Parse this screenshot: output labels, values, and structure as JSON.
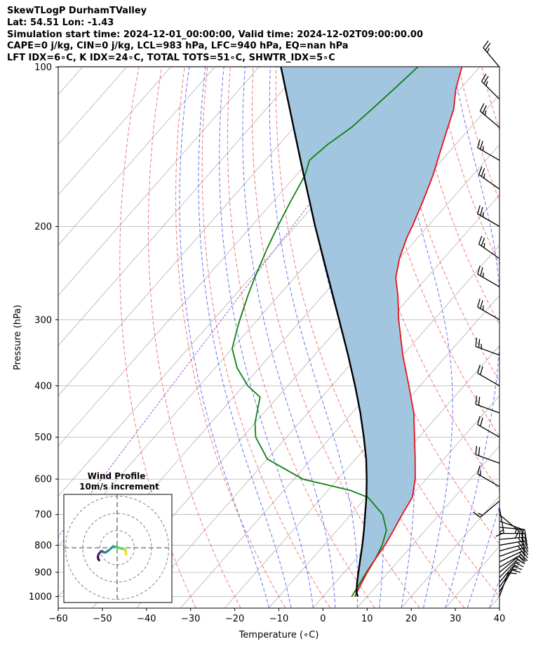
{
  "header": {
    "title_line": "SkewTLogP DurhamTValley",
    "location_line": "Lat: 54.51   Lon: -1.43",
    "time_line": "Simulation start time: 2024-12-01_00:00:00, Valid time: 2024-12-02T09:00:00.00",
    "params_line": "CAPE=0 j/kg, CIN=0 j/kg, LCL=983 hPa, LFC=940 hPa, EQ=nan hPa",
    "indices_line": "LFT IDX=6∘C, K IDX=24∘C, TOTAL TOTS=51∘C, SHWTR_IDX=5∘C"
  },
  "chart_data": {
    "type": "skewt",
    "xlabel": "Temperature (∘C)",
    "ylabel": "Pressure (hPa)",
    "xlim": [
      -60,
      40
    ],
    "plim": [
      1050,
      100
    ],
    "x_ticks": [
      -60,
      -50,
      -40,
      -30,
      -20,
      -10,
      0,
      10,
      20,
      30,
      40
    ],
    "x_tick_labels": [
      "−60",
      "−50",
      "−40",
      "−30",
      "−20",
      "−10",
      "0",
      "10",
      "20",
      "30",
      "40"
    ],
    "y_ticks": [
      1000,
      900,
      800,
      700,
      600,
      500,
      400,
      300,
      200,
      100
    ],
    "y_tick_labels": [
      "1000",
      "900",
      "800",
      "700",
      "600",
      "500",
      "400",
      "300",
      "200",
      "100"
    ],
    "series": [
      {
        "name": "temperature",
        "color": "#e8111a",
        "pressure": [
          1000,
          950,
          900,
          850,
          800,
          750,
          700,
          650,
          600,
          550,
          500,
          450,
          400,
          350,
          300,
          270,
          250,
          230,
          210,
          200,
          180,
          160,
          140,
          120,
          110,
          100
        ],
        "temperature": [
          7.2,
          6.2,
          5.2,
          4.4,
          3.8,
          2.8,
          1.6,
          0.5,
          -2.5,
          -6.5,
          -11,
          -16,
          -22.5,
          -30,
          -38,
          -43,
          -47,
          -50,
          -52.5,
          -53.5,
          -56,
          -59,
          -63,
          -67.5,
          -71,
          -74
        ]
      },
      {
        "name": "dewpoint",
        "color": "#0f7f0f",
        "pressure": [
          1000,
          950,
          900,
          850,
          800,
          750,
          700,
          650,
          630,
          600,
          550,
          500,
          470,
          420,
          400,
          370,
          340,
          310,
          300,
          270,
          250,
          220,
          200,
          180,
          160,
          150,
          140,
          130,
          120,
          110,
          100
        ],
        "temperature": [
          6.5,
          5.8,
          5.0,
          4.4,
          3.2,
          1.2,
          -2.8,
          -9.5,
          -15,
          -28,
          -40,
          -47,
          -50,
          -54,
          -59,
          -65,
          -70,
          -73,
          -74,
          -77,
          -79,
          -82,
          -84,
          -86,
          -88,
          -90,
          -89,
          -87,
          -86,
          -85,
          -84
        ]
      },
      {
        "name": "parcel",
        "color": "#000000",
        "pressure": [
          1000,
          983,
          940,
          900,
          850,
          800,
          750,
          700,
          650,
          600,
          550,
          500,
          450,
          400,
          350,
          300,
          250,
          200,
          150,
          100
        ],
        "temperature": [
          7.9,
          6.8,
          4.9,
          3.2,
          1.0,
          -1.3,
          -3.9,
          -6.8,
          -9.9,
          -13.5,
          -17.6,
          -22.5,
          -28.1,
          -34.7,
          -42.4,
          -51.5,
          -62.3,
          -75.5,
          -92.0,
          -115.0
        ]
      }
    ],
    "wind_barbs": {
      "pressure": [
        1000,
        980,
        960,
        940,
        920,
        900,
        880,
        860,
        840,
        820,
        800,
        780,
        760,
        740,
        720,
        700,
        680,
        660,
        620,
        560,
        500,
        450,
        400,
        350,
        300,
        260,
        230,
        200,
        170,
        150,
        130,
        115,
        100
      ],
      "direction": [
        20,
        30,
        35,
        40,
        45,
        50,
        60,
        65,
        70,
        75,
        80,
        85,
        90,
        95,
        110,
        130,
        170,
        230,
        300,
        290,
        300,
        290,
        300,
        290,
        300,
        300,
        305,
        300,
        305,
        300,
        310,
        315,
        320
      ],
      "speed": [
        12,
        13,
        15,
        17,
        18,
        20,
        22,
        22,
        24,
        25,
        26,
        25,
        24,
        22,
        20,
        18,
        15,
        15,
        18,
        22,
        22,
        22,
        24,
        25,
        25,
        25,
        27,
        27,
        27,
        27,
        25,
        25,
        25
      ]
    },
    "hodograph": {
      "title": "Wind Profile",
      "subtitle": "10m/s increment",
      "rings_ms": [
        10,
        20,
        30
      ],
      "u": [
        -10.5,
        -11.0,
        -11.2,
        -11.0,
        -10.4,
        -9.8,
        -9.3,
        -8.7,
        -8.2,
        -7.8,
        -7.2,
        -6.2,
        -4.8,
        -3.0,
        -2.2,
        -1.6,
        -0.5,
        0.6,
        1.5,
        2.8,
        4.2,
        5.0,
        5.2,
        4.8,
        5.5
      ],
      "v": [
        -7.2,
        -6.5,
        -5.4,
        -4.2,
        -3.2,
        -2.6,
        -2.2,
        -2.0,
        -2.4,
        -2.6,
        -2.8,
        -2.4,
        -1.4,
        0.2,
        0.9,
        0.4,
        0.6,
        0.2,
        -0.3,
        -0.5,
        -0.8,
        -1.8,
        -2.8,
        -3.5,
        -3.9
      ]
    }
  }
}
